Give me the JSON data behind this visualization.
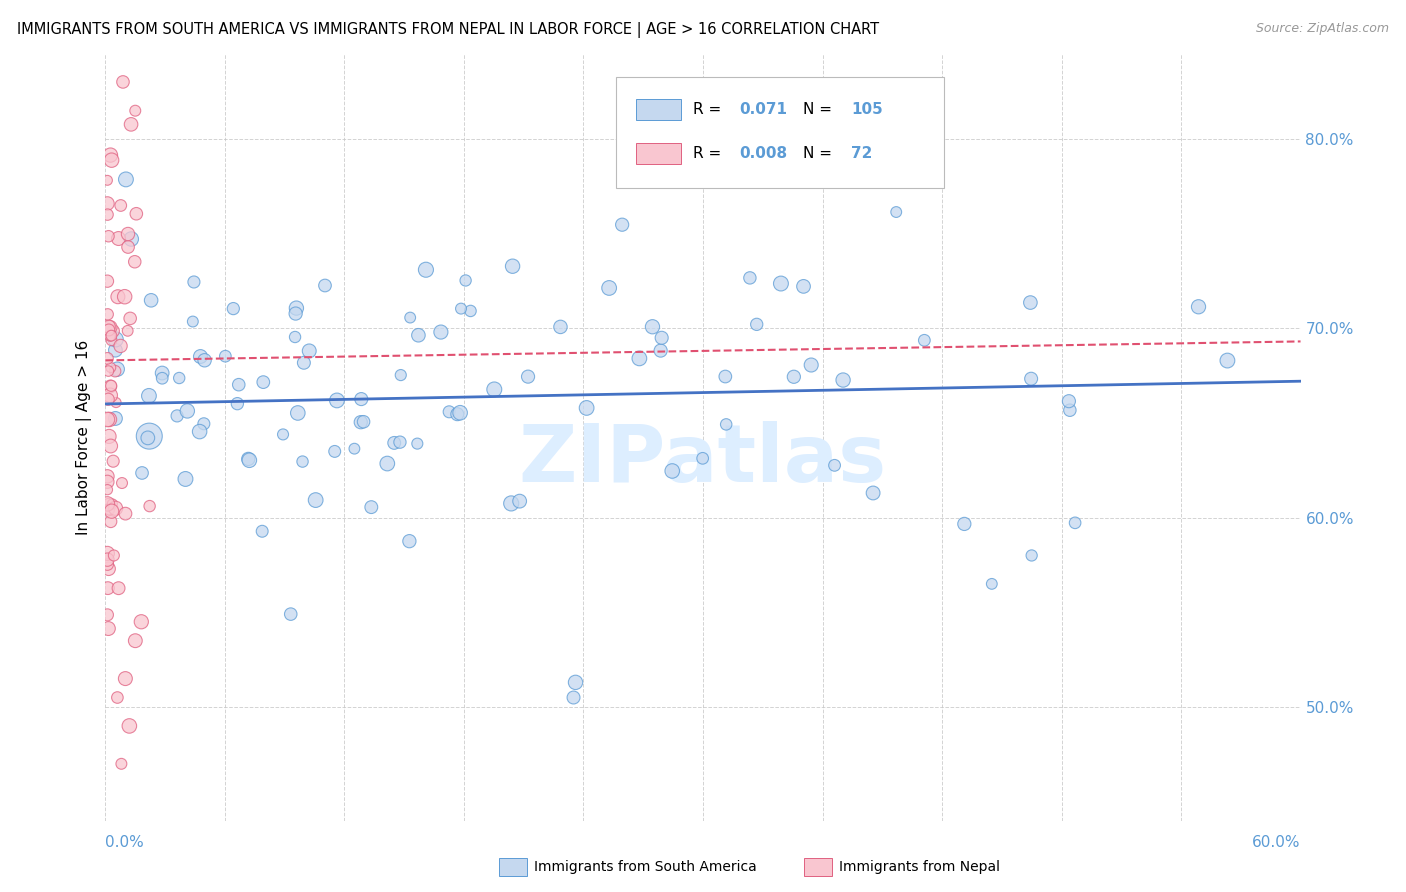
{
  "title": "IMMIGRANTS FROM SOUTH AMERICA VS IMMIGRANTS FROM NEPAL IN LABOR FORCE | AGE > 16 CORRELATION CHART",
  "source": "Source: ZipAtlas.com",
  "ylabel": "In Labor Force | Age > 16",
  "xlim": [
    0.0,
    0.6
  ],
  "ylim": [
    0.44,
    0.845
  ],
  "yticks": [
    0.5,
    0.6,
    0.7,
    0.8
  ],
  "ytick_labels": [
    "50.0%",
    "60.0%",
    "70.0%",
    "80.0%"
  ],
  "r_blue": "0.071",
  "n_blue": "105",
  "r_pink": "0.008",
  "n_pink": "72",
  "blue_fill": "#c5d8ef",
  "blue_edge": "#5b9bd5",
  "pink_fill": "#f9c6d0",
  "pink_edge": "#e06080",
  "trend_blue": "#4472c4",
  "trend_pink": "#e05070",
  "watermark_color": "#ddeeff",
  "blue_trendline": [
    0.0,
    0.6,
    0.66,
    0.672
  ],
  "pink_trendline": [
    0.0,
    0.6,
    0.683,
    0.693
  ]
}
